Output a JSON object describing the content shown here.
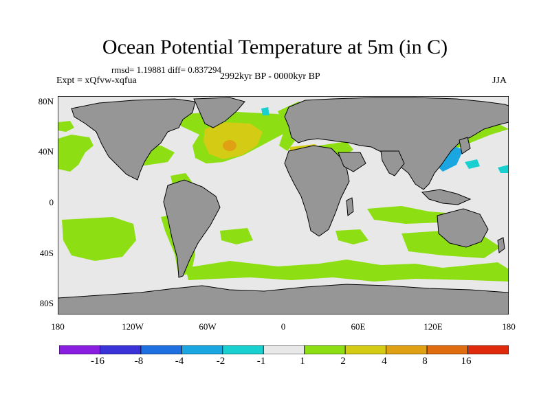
{
  "title": "Ocean Potential Temperature at 5m (in C)",
  "stats": "rmsd= 1.19881 diff= 0.837294",
  "experiment": "Expt = xQfvw-xqfua",
  "period": "2992kyr BP - 0000kyr BP",
  "season": "JJA",
  "y_ticks": [
    "80N",
    "40N",
    "0",
    "40S",
    "80S"
  ],
  "x_ticks": [
    "180",
    "120W",
    "60W",
    "0",
    "60E",
    "120E",
    "180"
  ],
  "colorbar": {
    "labels": [
      "-16",
      "-8",
      "-4",
      "-2",
      "-1",
      "1",
      "2",
      "4",
      "8",
      "16"
    ],
    "colors": [
      "#8a1ee0",
      "#3a34d8",
      "#1e6fe0",
      "#1aa6e0",
      "#18d0d0",
      "#e8e8e8",
      "#8ede14",
      "#d4cc14",
      "#e0a014",
      "#e06c10",
      "#e02a0c"
    ]
  },
  "colors": {
    "ocean_neutral": "#e8e8e8",
    "land": "#969696"
  }
}
